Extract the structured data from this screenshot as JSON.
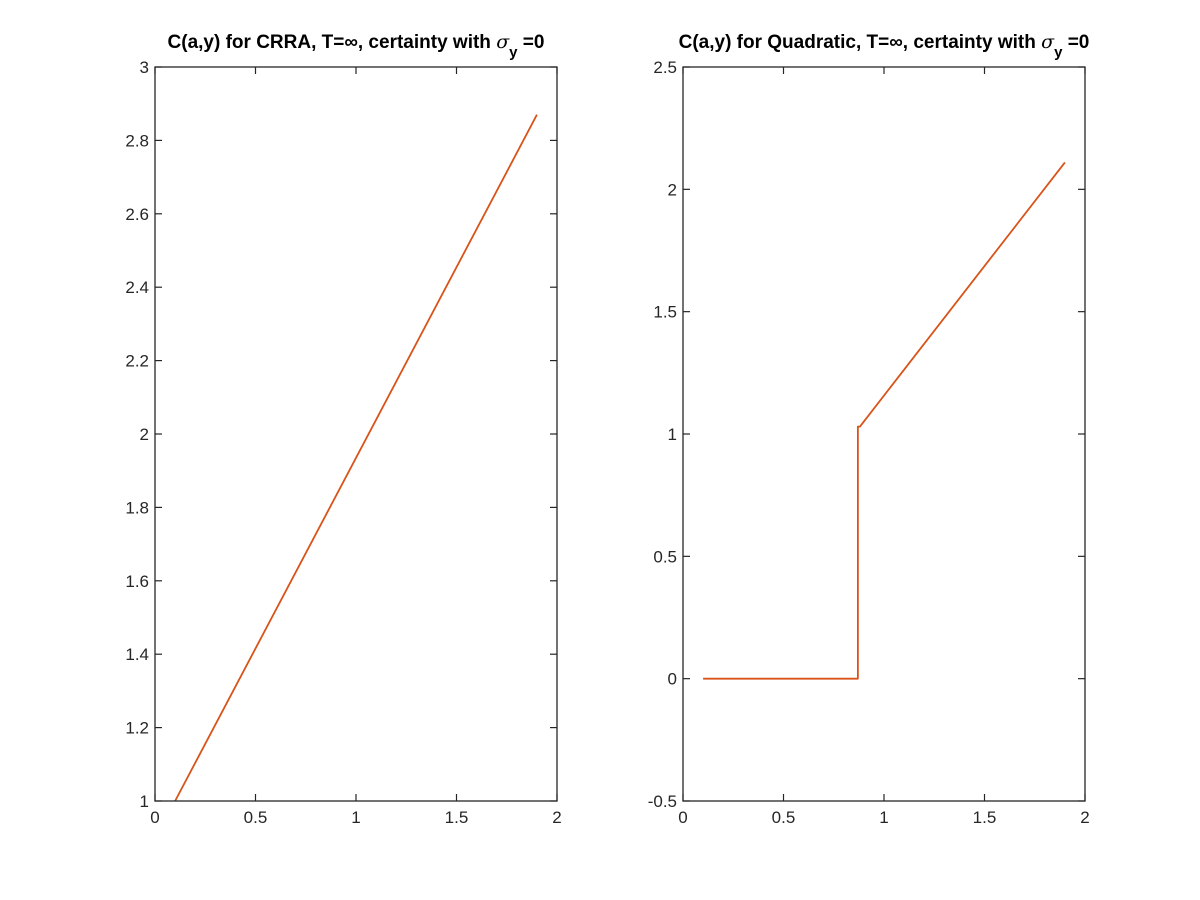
{
  "chart_data": [
    {
      "type": "line",
      "title_parts": [
        "C(a,y) for CRRA, T=∞, certainty with ",
        "σ",
        "y",
        " =0"
      ],
      "xlabel": "",
      "ylabel": "",
      "xlim": [
        0,
        2
      ],
      "ylim": [
        1,
        3
      ],
      "x_ticks": [
        0,
        0.5,
        1,
        1.5,
        2
      ],
      "x_tick_labels": [
        "0",
        "0.5",
        "1",
        "1.5",
        "2"
      ],
      "y_ticks": [
        1,
        1.2,
        1.4,
        1.6,
        1.8,
        2,
        2.2,
        2.4,
        2.6,
        2.8,
        3
      ],
      "y_tick_labels": [
        "1",
        "1.2",
        "1.4",
        "1.6",
        "1.8",
        "2",
        "2.2",
        "2.4",
        "2.6",
        "2.8",
        "3"
      ],
      "grid": false,
      "series": [
        {
          "color": "#d95319",
          "x": [
            0.1,
            1.9
          ],
          "y": [
            1.0,
            2.87
          ]
        }
      ]
    },
    {
      "type": "line",
      "title_parts": [
        "C(a,y) for Quadratic, T=∞, certainty with ",
        "σ",
        "y",
        " =0"
      ],
      "xlabel": "",
      "ylabel": "",
      "xlim": [
        0,
        2
      ],
      "ylim": [
        -0.5,
        2.5
      ],
      "x_ticks": [
        0,
        0.5,
        1,
        1.5,
        2
      ],
      "x_tick_labels": [
        "0",
        "0.5",
        "1",
        "1.5",
        "2"
      ],
      "y_ticks": [
        -0.5,
        0,
        0.5,
        1,
        1.5,
        2,
        2.5
      ],
      "y_tick_labels": [
        "-0.5",
        "0",
        "0.5",
        "1",
        "1.5",
        "2",
        "2.5"
      ],
      "grid": false,
      "series": [
        {
          "color": "#d95319",
          "x": [
            0.1,
            0.87,
            0.87,
            0.88,
            1.9
          ],
          "y": [
            0.0,
            0.0,
            1.03,
            1.03,
            2.11
          ]
        }
      ]
    }
  ]
}
